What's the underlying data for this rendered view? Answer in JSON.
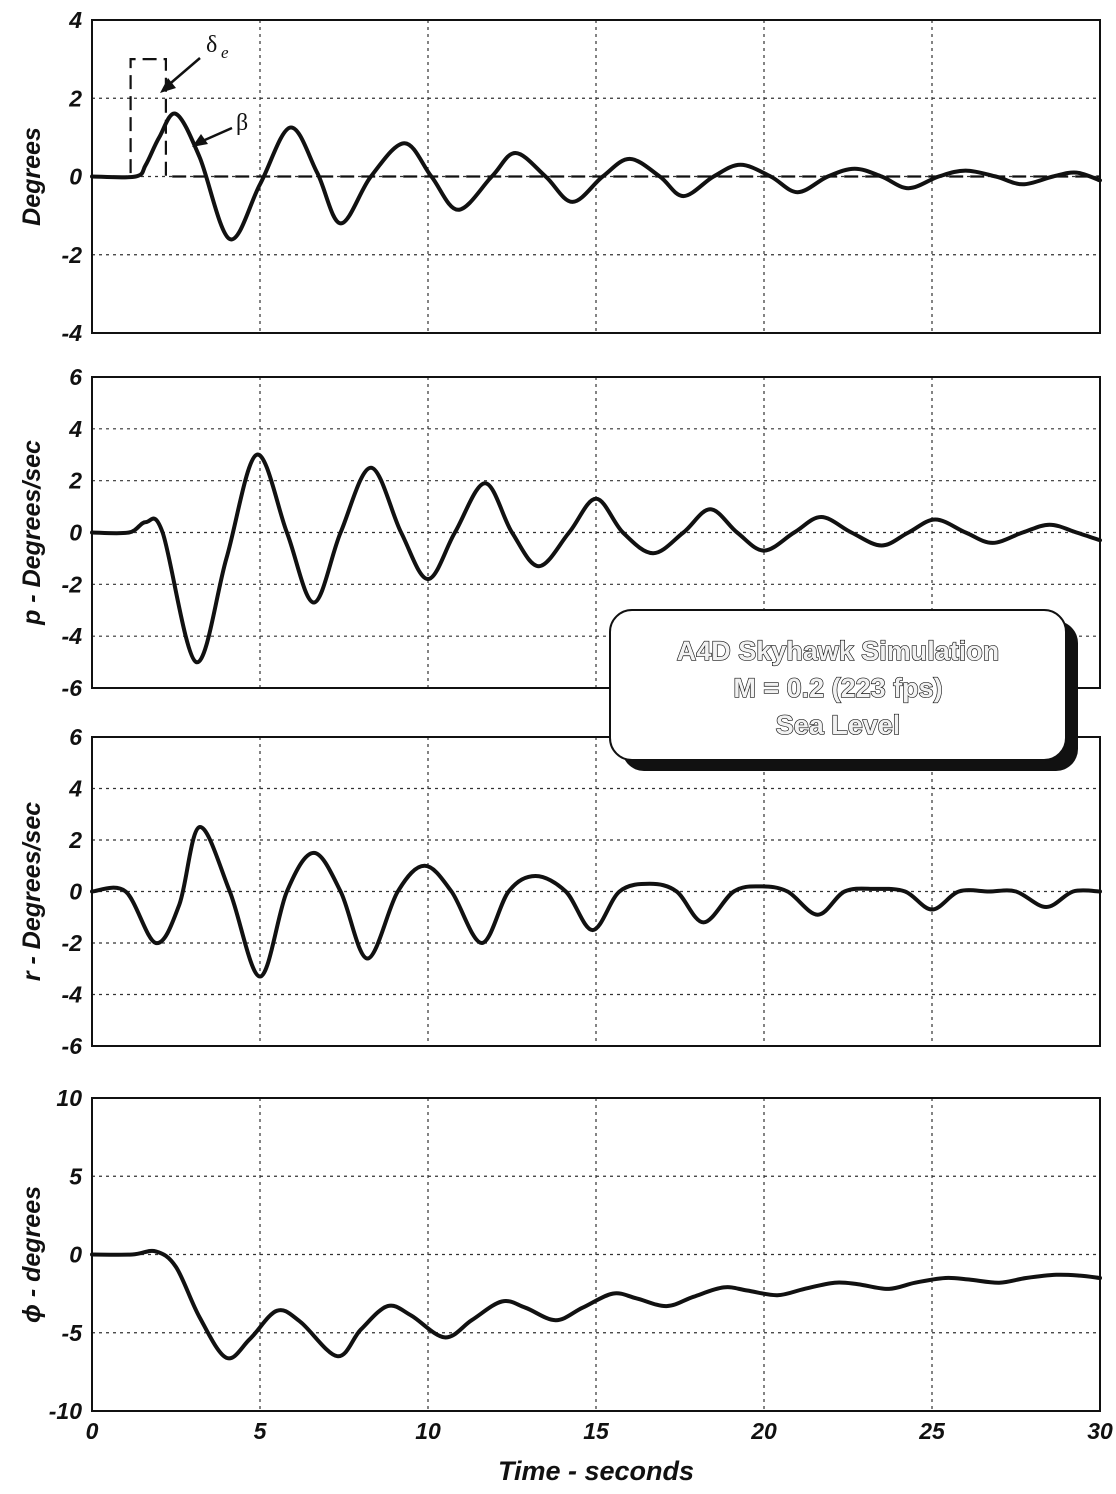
{
  "chart_data": [
    {
      "type": "line",
      "ylabel": "Degrees",
      "xlabel": "",
      "xlim": [
        0,
        30
      ],
      "ylim": [
        -4,
        4
      ],
      "xticks": [
        "0",
        "5",
        "10",
        "15",
        "20",
        "25",
        "30"
      ],
      "yticks": [
        "4",
        "2",
        "0",
        "-2",
        "-4"
      ],
      "grid": true,
      "series": [
        {
          "name": "δe",
          "style": "dashed",
          "x": [
            0,
            1.15,
            1.15,
            2.2,
            2.2,
            30
          ],
          "y": [
            0,
            0,
            3,
            3,
            0,
            0
          ]
        },
        {
          "name": "β",
          "style": "solid",
          "x": [
            0,
            1.3,
            1.6,
            2.0,
            2.5,
            3.2,
            4.1,
            5.0,
            5.9,
            6.7,
            7.4,
            8.3,
            9.3,
            10.1,
            10.9,
            11.9,
            12.6,
            13.5,
            14.3,
            15.2,
            16.0,
            16.9,
            17.6,
            18.5,
            19.3,
            20.2,
            21.0,
            21.9,
            22.7,
            23.5,
            24.3,
            25.2,
            26.0,
            26.9,
            27.7,
            28.6,
            29.3,
            30.0
          ],
          "y": [
            0,
            0,
            0.3,
            1.0,
            1.6,
            0.5,
            -1.6,
            -0.2,
            1.25,
            0.1,
            -1.2,
            0,
            0.85,
            0,
            -0.85,
            0,
            0.6,
            0,
            -0.65,
            0,
            0.45,
            0,
            -0.5,
            0,
            0.3,
            0,
            -0.4,
            0,
            0.2,
            0,
            -0.3,
            0,
            0.15,
            0,
            -0.2,
            0,
            0.1,
            -0.1
          ]
        }
      ]
    },
    {
      "type": "line",
      "ylabel": "p  -  Degrees/sec",
      "xlabel": "",
      "xlim": [
        0,
        30
      ],
      "ylim": [
        -6,
        6
      ],
      "xticks": [
        "0",
        "5",
        "10",
        "15",
        "20",
        "25",
        "30"
      ],
      "yticks": [
        "6",
        "4",
        "2",
        "0",
        "-2",
        "-4",
        "-6"
      ],
      "grid": true,
      "series": [
        {
          "name": "p",
          "style": "solid",
          "x": [
            0,
            1.1,
            1.6,
            2.1,
            3.1,
            4.0,
            4.9,
            5.8,
            6.6,
            7.4,
            8.3,
            9.2,
            10.0,
            10.8,
            11.7,
            12.5,
            13.3,
            14.2,
            15.0,
            15.8,
            16.7,
            17.6,
            18.4,
            19.2,
            20.0,
            20.9,
            21.7,
            22.6,
            23.5,
            24.3,
            25.1,
            26.0,
            26.8,
            27.7,
            28.5,
            29.3,
            30.0
          ],
          "y": [
            0,
            0,
            0.4,
            0,
            -5,
            -1,
            3.0,
            0,
            -2.7,
            0,
            2.5,
            0,
            -1.8,
            0,
            1.9,
            0,
            -1.3,
            0,
            1.3,
            0,
            -0.8,
            0,
            0.9,
            0,
            -0.7,
            0,
            0.6,
            0,
            -0.5,
            0,
            0.5,
            0,
            -0.4,
            0,
            0.3,
            0,
            -0.3
          ]
        }
      ]
    },
    {
      "type": "line",
      "ylabel": "r  -  Degrees/sec",
      "xlabel": "",
      "xlim": [
        0,
        30
      ],
      "ylim": [
        -6,
        6
      ],
      "xticks": [
        "0",
        "5",
        "10",
        "15",
        "20",
        "25",
        "30"
      ],
      "yticks": [
        "6",
        "4",
        "2",
        "0",
        "-2",
        "-4",
        "-6"
      ],
      "grid": true,
      "series": [
        {
          "name": "r",
          "style": "solid",
          "x": [
            0,
            1.0,
            1.9,
            2.6,
            3.2,
            4.1,
            5.0,
            5.8,
            6.6,
            7.4,
            8.2,
            9.1,
            9.9,
            10.7,
            11.6,
            12.4,
            13.2,
            14.1,
            14.9,
            15.7,
            16.6,
            17.4,
            18.2,
            19.1,
            19.9,
            20.7,
            21.6,
            22.4,
            23.3,
            24.2,
            25.0,
            25.8,
            26.7,
            27.5,
            28.4,
            29.2,
            30.0
          ],
          "y": [
            0,
            0,
            -2.0,
            -0.5,
            2.5,
            0,
            -3.3,
            0,
            1.5,
            0,
            -2.6,
            0,
            1.0,
            0,
            -2.0,
            0,
            0.6,
            0,
            -1.5,
            0,
            0.3,
            0,
            -1.2,
            0,
            0.2,
            0,
            -0.9,
            0,
            0.1,
            0,
            -0.7,
            0,
            0,
            0,
            -0.6,
            0,
            0
          ]
        }
      ]
    },
    {
      "type": "line",
      "ylabel": "ϕ - degrees",
      "xlabel": "Time  -  seconds",
      "xlim": [
        0,
        30
      ],
      "ylim": [
        -10,
        10
      ],
      "xticks": [
        "0",
        "5",
        "10",
        "15",
        "20",
        "25",
        "30"
      ],
      "yticks": [
        "10",
        "5",
        "0",
        "-5",
        "-10"
      ],
      "grid": true,
      "series": [
        {
          "name": "ϕ",
          "style": "solid",
          "x": [
            0,
            1.2,
            1.9,
            2.5,
            3.2,
            4.0,
            4.7,
            5.5,
            6.2,
            7.3,
            8.0,
            8.8,
            9.5,
            10.5,
            11.3,
            12.2,
            12.9,
            13.8,
            14.6,
            15.5,
            16.2,
            17.1,
            17.9,
            18.8,
            19.5,
            20.4,
            21.2,
            22.1,
            22.8,
            23.7,
            24.5,
            25.4,
            26.1,
            27.0,
            27.8,
            28.7,
            29.4,
            30.0
          ],
          "y": [
            0,
            0,
            0.2,
            -0.8,
            -4.0,
            -6.6,
            -5.4,
            -3.6,
            -4.3,
            -6.5,
            -4.8,
            -3.3,
            -3.9,
            -5.3,
            -4.2,
            -3.0,
            -3.4,
            -4.2,
            -3.4,
            -2.5,
            -2.8,
            -3.3,
            -2.7,
            -2.1,
            -2.3,
            -2.6,
            -2.2,
            -1.8,
            -1.9,
            -2.2,
            -1.8,
            -1.5,
            -1.6,
            -1.8,
            -1.5,
            -1.3,
            -1.35,
            -1.5
          ]
        }
      ]
    }
  ],
  "annotations": {
    "delta_label": "δ",
    "delta_sub": "e",
    "beta_label": "β"
  },
  "info_box": {
    "line1": "A4D Skyhawk Simulation",
    "line2": "M = 0.2 (223 fps)",
    "line3": "Sea Level"
  }
}
